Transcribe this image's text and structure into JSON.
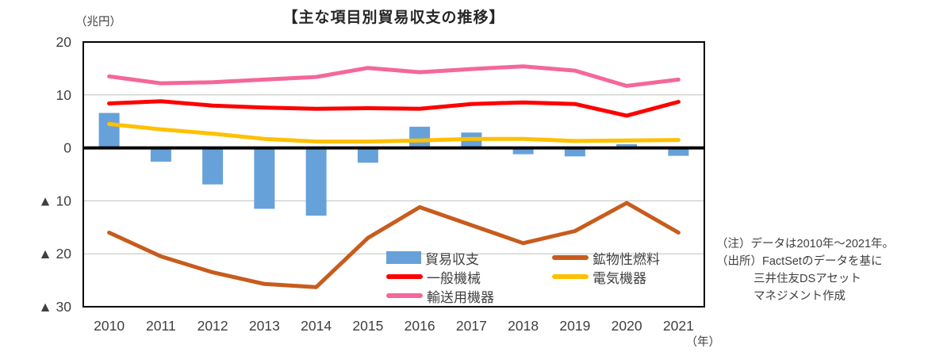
{
  "title": "【主な項目別貿易収支の推移】",
  "unit_label": "（兆円）",
  "year_label": "（年）",
  "notes": [
    "（注）データは2010年～2021年。",
    "（出所）FactSetのデータを基に",
    "三井住友DSアセット",
    "マネジメント作成"
  ],
  "legend": {
    "items": [
      {
        "label": "貿易収支",
        "swatch": "bar",
        "color": "#67A1DA"
      },
      {
        "label": "鉱物性燃料",
        "swatch": "line",
        "color": "#C75C1D"
      },
      {
        "label": "一般機械",
        "swatch": "line",
        "color": "#FF0000"
      },
      {
        "label": "電気機器",
        "swatch": "line",
        "color": "#FFC000"
      },
      {
        "label": "輸送用機器",
        "swatch": "line",
        "color": "#F4679A"
      }
    ]
  },
  "chart_data": {
    "type": "combo-bar-line",
    "title": "【主な項目別貿易収支の推移】",
    "ylabel": "（兆円）",
    "xlabel": "（年）",
    "categories": [
      "2010",
      "2011",
      "2012",
      "2013",
      "2014",
      "2015",
      "2016",
      "2017",
      "2018",
      "2019",
      "2020",
      "2021"
    ],
    "series": [
      {
        "name": "貿易収支",
        "type": "bar",
        "color": "#67A1DA",
        "values": [
          6.6,
          -2.6,
          -6.9,
          -11.5,
          -12.8,
          -2.8,
          4.0,
          2.9,
          -1.2,
          -1.6,
          0.7,
          -1.5
        ]
      },
      {
        "name": "鉱物性燃料",
        "type": "line",
        "color": "#C75C1D",
        "values": [
          -16.0,
          -20.5,
          -23.5,
          -25.7,
          -26.3,
          -17.0,
          -11.2,
          -14.6,
          -18.0,
          -15.7,
          -10.4,
          -16.0
        ]
      },
      {
        "name": "一般機械",
        "type": "line",
        "color": "#FF0000",
        "values": [
          8.4,
          8.8,
          8.0,
          7.6,
          7.4,
          7.5,
          7.4,
          8.3,
          8.6,
          8.3,
          6.1,
          8.7
        ]
      },
      {
        "name": "電気機器",
        "type": "line",
        "color": "#FFC000",
        "values": [
          4.5,
          3.5,
          2.7,
          1.7,
          1.2,
          1.2,
          1.4,
          1.7,
          1.7,
          1.3,
          1.4,
          1.5
        ]
      },
      {
        "name": "輸送用機器",
        "type": "line",
        "color": "#F4679A",
        "values": [
          13.5,
          12.2,
          12.4,
          12.9,
          13.4,
          15.1,
          14.3,
          14.9,
          15.4,
          14.6,
          11.7,
          12.9
        ]
      }
    ],
    "ylim": [
      -30,
      20
    ],
    "yticks": [
      {
        "value": 20,
        "label": "20"
      },
      {
        "value": 10,
        "label": "10",
        "grid": true
      },
      {
        "value": 0,
        "label": "0",
        "zero": true
      },
      {
        "value": -10,
        "label": "▲ 10",
        "grid": true
      },
      {
        "value": -20,
        "label": "▲ 20",
        "grid": true
      },
      {
        "value": -30,
        "label": "▲ 30"
      }
    ],
    "grid": "horizontal",
    "legend_position": "inside-bottom",
    "colors": {
      "gridline": "#BEC3B8",
      "axis": "#000000",
      "tick_text": "#404040"
    }
  }
}
